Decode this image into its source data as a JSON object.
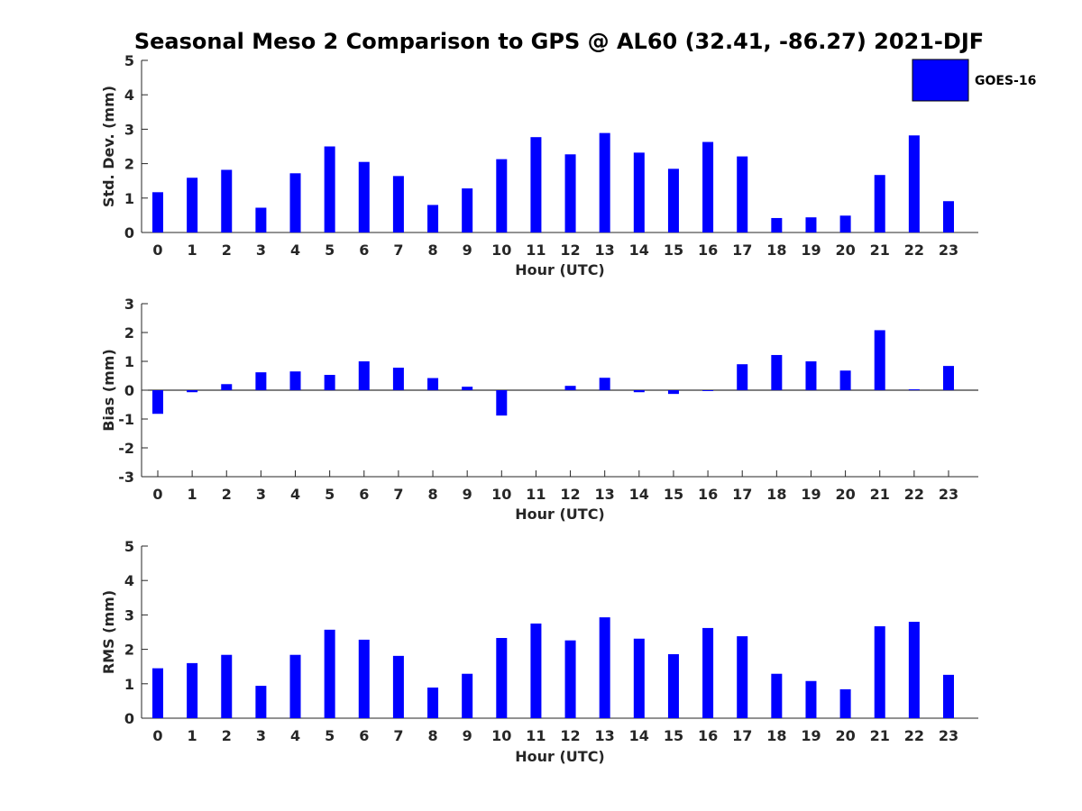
{
  "chart_data": {
    "type": "bar",
    "title": "Seasonal Meso 2 Comparison to GPS @ AL60 (32.41, -86.27) 2021-DJF",
    "legend": {
      "label": "GOES-16",
      "color": "#0000ff",
      "placement": "top-right"
    },
    "categories": [
      "0",
      "1",
      "2",
      "3",
      "4",
      "5",
      "6",
      "7",
      "8",
      "9",
      "10",
      "11",
      "12",
      "13",
      "14",
      "15",
      "16",
      "17",
      "18",
      "19",
      "20",
      "21",
      "22",
      "23"
    ],
    "panels": [
      {
        "name": "std-dev",
        "ylabel": "Std. Dev. (mm)",
        "xlabel": "Hour (UTC)",
        "ylim": [
          0,
          5
        ],
        "yticks": [
          "0",
          "1",
          "2",
          "3",
          "4",
          "5"
        ],
        "series": [
          {
            "name": "GOES-16",
            "values": [
              1.17,
              1.59,
              1.82,
              0.72,
              1.72,
              2.5,
              2.05,
              1.64,
              0.8,
              1.28,
              2.13,
              2.77,
              2.27,
              2.89,
              2.32,
              1.85,
              2.63,
              2.21,
              0.42,
              0.44,
              0.49,
              1.67,
              2.82,
              0.91
            ]
          }
        ]
      },
      {
        "name": "bias",
        "ylabel": "Bias (mm)",
        "xlabel": "Hour (UTC)",
        "ylim": [
          -3,
          3
        ],
        "yticks": [
          "-3",
          "-2",
          "-1",
          "0",
          "1",
          "2",
          "3"
        ],
        "zero_line": true,
        "series": [
          {
            "name": "GOES-16",
            "values": [
              -0.82,
              -0.07,
              0.21,
              0.62,
              0.65,
              0.53,
              1.0,
              0.78,
              0.42,
              0.12,
              -0.88,
              0.0,
              0.15,
              0.43,
              -0.07,
              -0.13,
              -0.03,
              0.9,
              1.22,
              1.0,
              0.68,
              2.08,
              0.03,
              0.84
            ]
          }
        ]
      },
      {
        "name": "rms",
        "ylabel": "RMS (mm)",
        "xlabel": "Hour (UTC)",
        "ylim": [
          0,
          5
        ],
        "yticks": [
          "0",
          "1",
          "2",
          "3",
          "4",
          "5"
        ],
        "series": [
          {
            "name": "GOES-16",
            "values": [
              1.45,
              1.6,
              1.84,
              0.94,
              1.84,
              2.57,
              2.28,
              1.81,
              0.89,
              1.29,
              2.33,
              2.75,
              2.26,
              2.93,
              2.31,
              1.86,
              2.62,
              2.38,
              1.29,
              1.08,
              0.84,
              2.67,
              2.8,
              1.26
            ]
          }
        ]
      }
    ]
  }
}
